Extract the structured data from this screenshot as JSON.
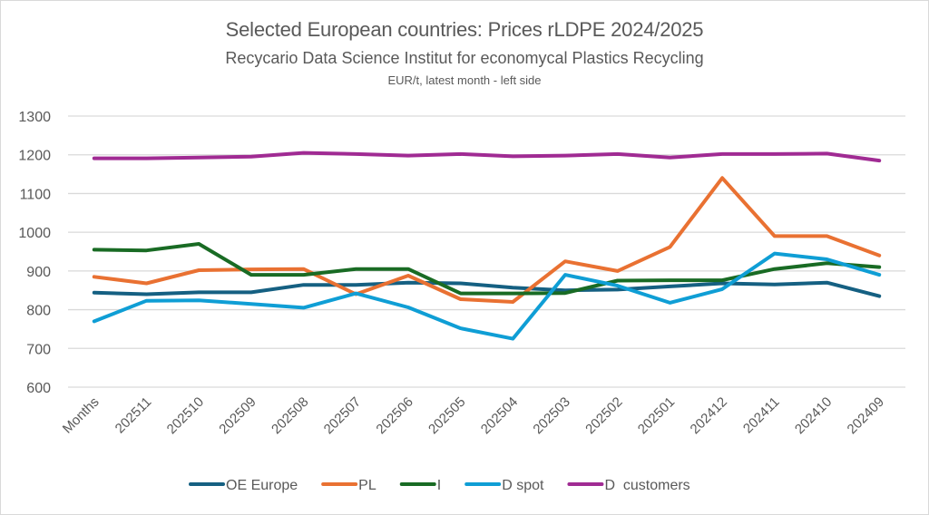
{
  "chart_data": {
    "type": "line",
    "title": "Selected European countries: Prices rLDPE 2024/2025",
    "subtitle": "Recycario Data Science Institut for economycal Plastics Recycling",
    "note": "EUR/t, latest month - left side",
    "xlabel": "",
    "ylabel": "",
    "ylim": [
      600,
      1300
    ],
    "yticks": [
      600,
      700,
      800,
      900,
      1000,
      1100,
      1200,
      1300
    ],
    "grid": true,
    "legend_position": "bottom",
    "categories": [
      "Months",
      "202511",
      "202510",
      "202509",
      "202508",
      "202507",
      "202506",
      "202505",
      "202504",
      "202503",
      "202502",
      "202501",
      "202412",
      "202411",
      "202410",
      "202409"
    ],
    "series": [
      {
        "name": "OE Europe",
        "color": "#156082",
        "values": [
          844,
          840,
          845,
          845,
          864,
          864,
          870,
          868,
          857,
          850,
          852,
          860,
          868,
          865,
          870,
          835
        ]
      },
      {
        "name": "PL",
        "color": "#E97132",
        "values": [
          885,
          868,
          902,
          904,
          905,
          840,
          888,
          827,
          820,
          925,
          900,
          962,
          1140,
          990,
          990,
          940
        ]
      },
      {
        "name": "I",
        "color": "#196B24",
        "values": [
          955,
          953,
          970,
          890,
          890,
          905,
          905,
          842,
          842,
          843,
          875,
          876,
          876,
          905,
          920,
          910
        ]
      },
      {
        "name": "D spot",
        "color": "#0F9ED5",
        "values": [
          770,
          823,
          824,
          815,
          805,
          842,
          806,
          752,
          725,
          890,
          862,
          818,
          853,
          945,
          930,
          890
        ]
      },
      {
        "name": "D  customers",
        "color": "#A02B93",
        "values": [
          1191,
          1191,
          1193,
          1195,
          1205,
          1202,
          1198,
          1202,
          1196,
          1198,
          1202,
          1193,
          1202,
          1202,
          1203,
          1185
        ]
      }
    ]
  }
}
